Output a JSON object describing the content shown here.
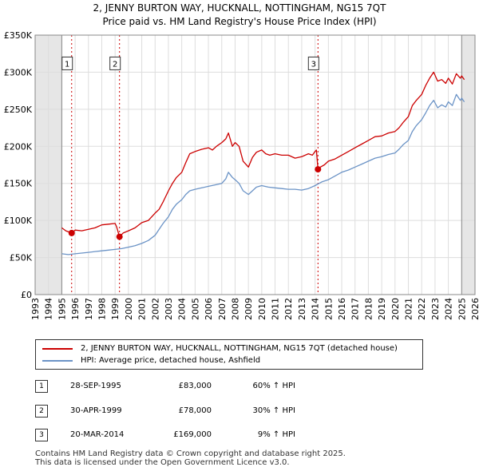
{
  "header": {
    "title": "2, JENNY BURTON WAY, HUCKNALL, NOTTINGHAM, NG15 7QT",
    "subtitle": "Price paid vs. HM Land Registry's House Price Index (HPI)"
  },
  "colors": {
    "property": "#cc0000",
    "hpi": "#6b93c6",
    "grid": "#dddddd",
    "shade": "#e6e6e6",
    "vline": "#cc0000"
  },
  "chart_data": {
    "type": "line",
    "title": "2, JENNY BURTON WAY, HUCKNALL, NOTTINGHAM, NG15 7QT",
    "xlabel": "",
    "ylabel": "",
    "xlim": [
      1993,
      2026
    ],
    "ylim": [
      0,
      350000
    ],
    "x_ticks": [
      1993,
      1994,
      1995,
      1996,
      1997,
      1998,
      1999,
      2000,
      2001,
      2002,
      2003,
      2004,
      2005,
      2006,
      2007,
      2008,
      2009,
      2010,
      2011,
      2012,
      2013,
      2014,
      2015,
      2016,
      2017,
      2018,
      2019,
      2020,
      2021,
      2022,
      2023,
      2024,
      2025,
      2026
    ],
    "x_tick_labels": [
      "1993",
      "1994",
      "1995",
      "1996",
      "1997",
      "1998",
      "1999",
      "2000",
      "2001",
      "2002",
      "2003",
      "2004",
      "2005",
      "2006",
      "2007",
      "2008",
      "2009",
      "2010",
      "2011",
      "2012",
      "2013",
      "2014",
      "2015",
      "2016",
      "2017",
      "2018",
      "2019",
      "2020",
      "2021",
      "2022",
      "2023",
      "2024",
      "2025",
      "2026"
    ],
    "y_ticks": [
      0,
      50000,
      100000,
      150000,
      200000,
      250000,
      300000,
      350000
    ],
    "y_tick_labels": [
      "£0",
      "£50K",
      "£100K",
      "£150K",
      "£200K",
      "£250K",
      "£300K",
      "£350K"
    ],
    "shaded_ranges": [
      [
        1993,
        1995.0
      ],
      [
        2025.0,
        2026
      ]
    ],
    "series": [
      {
        "name": "2, JENNY BURTON WAY, HUCKNALL, NOTTINGHAM, NG15 7QT (detached house)",
        "x": [
          1995.0,
          1995.3,
          1995.74,
          1996.0,
          1996.5,
          1997.0,
          1997.5,
          1998.0,
          1998.5,
          1999.0,
          1999.1,
          1999.33,
          1999.6,
          2000.0,
          2000.5,
          2001.0,
          2001.5,
          2002.0,
          2002.3,
          2002.6,
          2003.0,
          2003.3,
          2003.6,
          2004.0,
          2004.3,
          2004.6,
          2005.0,
          2005.5,
          2006.0,
          2006.3,
          2006.6,
          2007.0,
          2007.3,
          2007.5,
          2007.8,
          2008.0,
          2008.3,
          2008.6,
          2009.0,
          2009.3,
          2009.6,
          2010.0,
          2010.3,
          2010.6,
          2011.0,
          2011.5,
          2012.0,
          2012.5,
          2013.0,
          2013.5,
          2013.8,
          2014.0,
          2014.1,
          2014.22,
          2014.4,
          2014.7,
          2015.0,
          2015.5,
          2016.0,
          2016.5,
          2017.0,
          2017.5,
          2018.0,
          2018.5,
          2019.0,
          2019.5,
          2020.0,
          2020.3,
          2020.6,
          2021.0,
          2021.3,
          2021.6,
          2022.0,
          2022.3,
          2022.6,
          2022.9,
          2023.2,
          2023.5,
          2023.8,
          2024.0,
          2024.3,
          2024.6,
          2024.9,
          2025.0,
          2025.2
        ],
        "values": [
          90000,
          86000,
          83000,
          87000,
          86000,
          88000,
          90000,
          94000,
          95000,
          96000,
          92000,
          78000,
          83000,
          86000,
          90000,
          97000,
          100000,
          110000,
          115000,
          125000,
          140000,
          150000,
          158000,
          165000,
          178000,
          190000,
          193000,
          196000,
          198000,
          195000,
          200000,
          205000,
          210000,
          218000,
          200000,
          205000,
          200000,
          180000,
          172000,
          185000,
          192000,
          195000,
          190000,
          188000,
          190000,
          188000,
          188000,
          184000,
          186000,
          190000,
          188000,
          193000,
          195000,
          169000,
          172000,
          175000,
          180000,
          183000,
          188000,
          193000,
          198000,
          203000,
          208000,
          213000,
          214000,
          218000,
          220000,
          225000,
          232000,
          240000,
          255000,
          262000,
          270000,
          282000,
          292000,
          300000,
          288000,
          290000,
          285000,
          292000,
          284000,
          298000,
          292000,
          295000,
          290000
        ]
      },
      {
        "name": "HPI: Average price, detached house, Ashfield",
        "x": [
          1995.0,
          1995.5,
          1996.0,
          1996.5,
          1997.0,
          1997.5,
          1998.0,
          1998.5,
          1999.0,
          1999.5,
          2000.0,
          2000.5,
          2001.0,
          2001.5,
          2002.0,
          2002.3,
          2002.6,
          2003.0,
          2003.3,
          2003.6,
          2004.0,
          2004.3,
          2004.6,
          2005.0,
          2005.5,
          2006.0,
          2006.5,
          2007.0,
          2007.3,
          2007.5,
          2007.8,
          2008.0,
          2008.3,
          2008.6,
          2009.0,
          2009.3,
          2009.6,
          2010.0,
          2010.5,
          2011.0,
          2011.5,
          2012.0,
          2012.5,
          2013.0,
          2013.5,
          2014.0,
          2014.5,
          2015.0,
          2015.5,
          2016.0,
          2016.5,
          2017.0,
          2017.5,
          2018.0,
          2018.5,
          2019.0,
          2019.5,
          2020.0,
          2020.3,
          2020.6,
          2021.0,
          2021.3,
          2021.6,
          2022.0,
          2022.3,
          2022.6,
          2022.9,
          2023.2,
          2023.5,
          2023.8,
          2024.0,
          2024.3,
          2024.6,
          2024.9,
          2025.0,
          2025.2
        ],
        "values": [
          55000,
          54000,
          55000,
          56000,
          57000,
          58000,
          59000,
          60000,
          61000,
          62000,
          64000,
          66000,
          69000,
          73000,
          80000,
          88000,
          96000,
          105000,
          115000,
          122000,
          128000,
          135000,
          140000,
          142000,
          144000,
          146000,
          148000,
          150000,
          156000,
          165000,
          158000,
          155000,
          150000,
          140000,
          135000,
          140000,
          145000,
          147000,
          145000,
          144000,
          143000,
          142000,
          142000,
          141000,
          143000,
          147000,
          152000,
          155000,
          160000,
          165000,
          168000,
          172000,
          176000,
          180000,
          184000,
          186000,
          189000,
          191000,
          196000,
          202000,
          208000,
          220000,
          228000,
          236000,
          245000,
          255000,
          262000,
          252000,
          256000,
          253000,
          260000,
          255000,
          270000,
          262000,
          265000,
          260000
        ]
      }
    ],
    "markers": [
      {
        "label": "1",
        "x": 1995.74,
        "value": 83000
      },
      {
        "label": "2",
        "x": 1999.33,
        "value": 78000
      },
      {
        "label": "3",
        "x": 2014.22,
        "value": 169000
      }
    ]
  },
  "legend": {
    "property_label": "2, JENNY BURTON WAY, HUCKNALL, NOTTINGHAM, NG15 7QT (detached house)",
    "hpi_label": "HPI: Average price, detached house, Ashfield"
  },
  "transactions": [
    {
      "num": "1",
      "date": "28-SEP-1995",
      "price": "£83,000",
      "hpi": "60% ↑ HPI"
    },
    {
      "num": "2",
      "date": "30-APR-1999",
      "price": "£78,000",
      "hpi": "30% ↑ HPI"
    },
    {
      "num": "3",
      "date": "20-MAR-2014",
      "price": "£169,000",
      "hpi": "9% ↑ HPI"
    }
  ],
  "footer": {
    "line1": "Contains HM Land Registry data © Crown copyright and database right 2025.",
    "line2": "This data is licensed under the Open Government Licence v3.0."
  }
}
